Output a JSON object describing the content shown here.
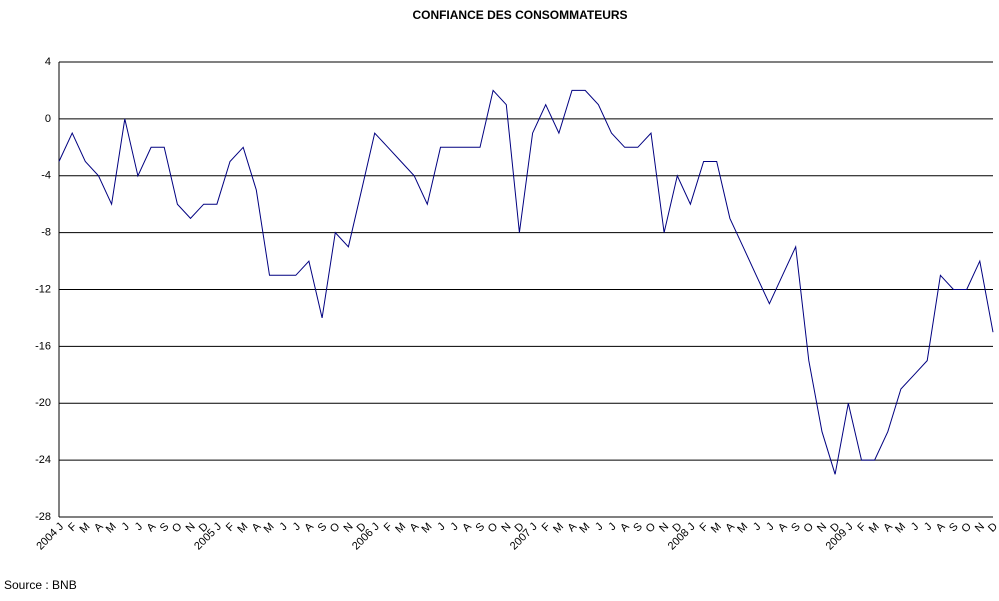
{
  "chart_data": {
    "type": "line",
    "title": "CONFIANCE DES CONSOMMATEURS",
    "categories": [
      "2004 J",
      "F",
      "M",
      "A",
      "M",
      "J",
      "J",
      "A",
      "S",
      "O",
      "N",
      "D",
      "2005 J",
      "F",
      "M",
      "A",
      "M",
      "J",
      "J",
      "A",
      "S",
      "O",
      "N",
      "D",
      "2006 J",
      "F",
      "M",
      "A",
      "M",
      "J",
      "J",
      "A",
      "S",
      "O",
      "N",
      "D",
      "2007 J",
      "F",
      "M",
      "A",
      "M",
      "J",
      "J",
      "A",
      "S",
      "O",
      "N",
      "D",
      "2008 J",
      "F",
      "M",
      "A",
      "M",
      "J",
      "J",
      "A",
      "S",
      "O",
      "N",
      "D",
      "2009 J",
      "F",
      "M",
      "A",
      "M",
      "J",
      "J",
      "A",
      "S",
      "O",
      "N",
      "D"
    ],
    "series": [
      {
        "name": "Confiance des consommateurs",
        "color": "#000080",
        "values": [
          -3,
          -1,
          -3,
          -4,
          -6,
          0,
          -4,
          -2,
          -2,
          -6,
          -7,
          -6,
          -6,
          -3,
          -2,
          -5,
          -11,
          -11,
          -11,
          -10,
          -14,
          -8,
          -9,
          -5,
          -1,
          -2,
          -3,
          -4,
          -6,
          -2,
          -2,
          -2,
          -2,
          2,
          1,
          -8,
          -1,
          1,
          -1,
          2,
          2,
          1,
          -1,
          -2,
          -2,
          -1,
          -8,
          -4,
          -6,
          -3,
          -3,
          -7,
          -9,
          -11,
          -13,
          -11,
          -9,
          -17,
          -22,
          -25,
          -20,
          -24,
          -24,
          -22,
          -19,
          -18,
          -17,
          -11,
          -12,
          -12,
          -10,
          -15
        ]
      }
    ],
    "ylim": [
      -28,
      4
    ],
    "yticks": [
      -28,
      -24,
      -20,
      -16,
      -12,
      -8,
      -4,
      0,
      4
    ],
    "grid": true,
    "source": "Source : BNB"
  }
}
